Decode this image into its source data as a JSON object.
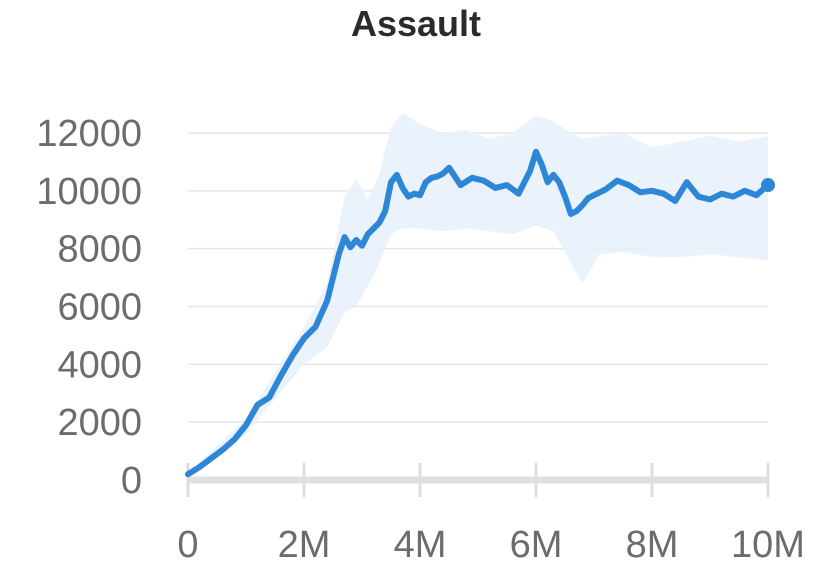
{
  "chart_data": {
    "type": "line",
    "title": "Assault",
    "xlabel": "",
    "ylabel": "",
    "xlim": [
      0,
      10000000
    ],
    "ylim": [
      0,
      12000
    ],
    "grid": true,
    "x_ticks": [
      {
        "value": 0,
        "label": "0"
      },
      {
        "value": 2000000,
        "label": "2M"
      },
      {
        "value": 4000000,
        "label": "4M"
      },
      {
        "value": 6000000,
        "label": "6M"
      },
      {
        "value": 8000000,
        "label": "8M"
      },
      {
        "value": 10000000,
        "label": "10M"
      }
    ],
    "y_ticks": [
      {
        "value": 0,
        "label": "0"
      },
      {
        "value": 2000,
        "label": "2000"
      },
      {
        "value": 4000,
        "label": "4000"
      },
      {
        "value": 6000,
        "label": "6000"
      },
      {
        "value": 8000,
        "label": "8000"
      },
      {
        "value": 10000,
        "label": "10000"
      },
      {
        "value": 12000,
        "label": "12000"
      }
    ],
    "line_color": "#2e86d6",
    "band_color": "#e6f0fb",
    "series": [
      {
        "x": [
          0,
          200000,
          400000,
          600000,
          800000,
          1000000,
          1200000,
          1400000,
          1600000,
          1800000,
          2000000,
          2200000,
          2400000,
          2500000,
          2600000,
          2700000,
          2800000,
          2900000,
          3000000,
          3100000,
          3200000,
          3300000,
          3400000,
          3500000,
          3600000,
          3700000,
          3800000,
          3900000,
          4000000,
          4100000,
          4200000,
          4300000,
          4400000,
          4500000,
          4700000,
          4900000,
          5100000,
          5300000,
          5500000,
          5700000,
          5900000,
          6000000,
          6100000,
          6200000,
          6300000,
          6400000,
          6500000,
          6600000,
          6700000,
          6800000,
          6900000,
          7000000,
          7200000,
          7400000,
          7600000,
          7800000,
          8000000,
          8200000,
          8400000,
          8600000,
          8800000,
          9000000,
          9200000,
          9400000,
          9600000,
          9800000,
          10000000
        ],
        "y": [
          200,
          450,
          750,
          1050,
          1400,
          1900,
          2600,
          2850,
          3600,
          4300,
          4900,
          5300,
          6200,
          7000,
          7800,
          8400,
          8050,
          8300,
          8100,
          8500,
          8700,
          8900,
          9300,
          10300,
          10550,
          10100,
          9800,
          9900,
          9850,
          10300,
          10450,
          10500,
          10600,
          10800,
          10200,
          10450,
          10350,
          10100,
          10200,
          9900,
          10700,
          11350,
          10900,
          10300,
          10550,
          10300,
          9800,
          9200,
          9300,
          9500,
          9750,
          9850,
          10050,
          10350,
          10200,
          9950,
          10000,
          9900,
          9650,
          10300,
          9800,
          9700,
          9900,
          9800,
          10000,
          9850,
          10200
        ]
      }
    ],
    "band": {
      "x": [
        0,
        1000000,
        2000000,
        2400000,
        2700000,
        2900000,
        3100000,
        3300000,
        3500000,
        3700000,
        4000000,
        4400000,
        4800000,
        5200000,
        5600000,
        6000000,
        6300000,
        6600000,
        6800000,
        7100000,
        7500000,
        8000000,
        8500000,
        9000000,
        9500000,
        10000000
      ],
      "upper": [
        250,
        2100,
        5300,
        6800,
        9800,
        10400,
        9700,
        10600,
        12200,
        12700,
        12300,
        12000,
        12100,
        11800,
        12000,
        12600,
        12400,
        12000,
        11800,
        11900,
        12000,
        11500,
        11700,
        11900,
        11700,
        11900
      ],
      "lower": [
        150,
        1600,
        4000,
        4600,
        5800,
        6000,
        6700,
        7500,
        8500,
        8700,
        8700,
        8600,
        8700,
        8600,
        8500,
        8800,
        8600,
        7500,
        6800,
        7800,
        7900,
        7700,
        7700,
        7800,
        7700,
        7600
      ]
    }
  }
}
